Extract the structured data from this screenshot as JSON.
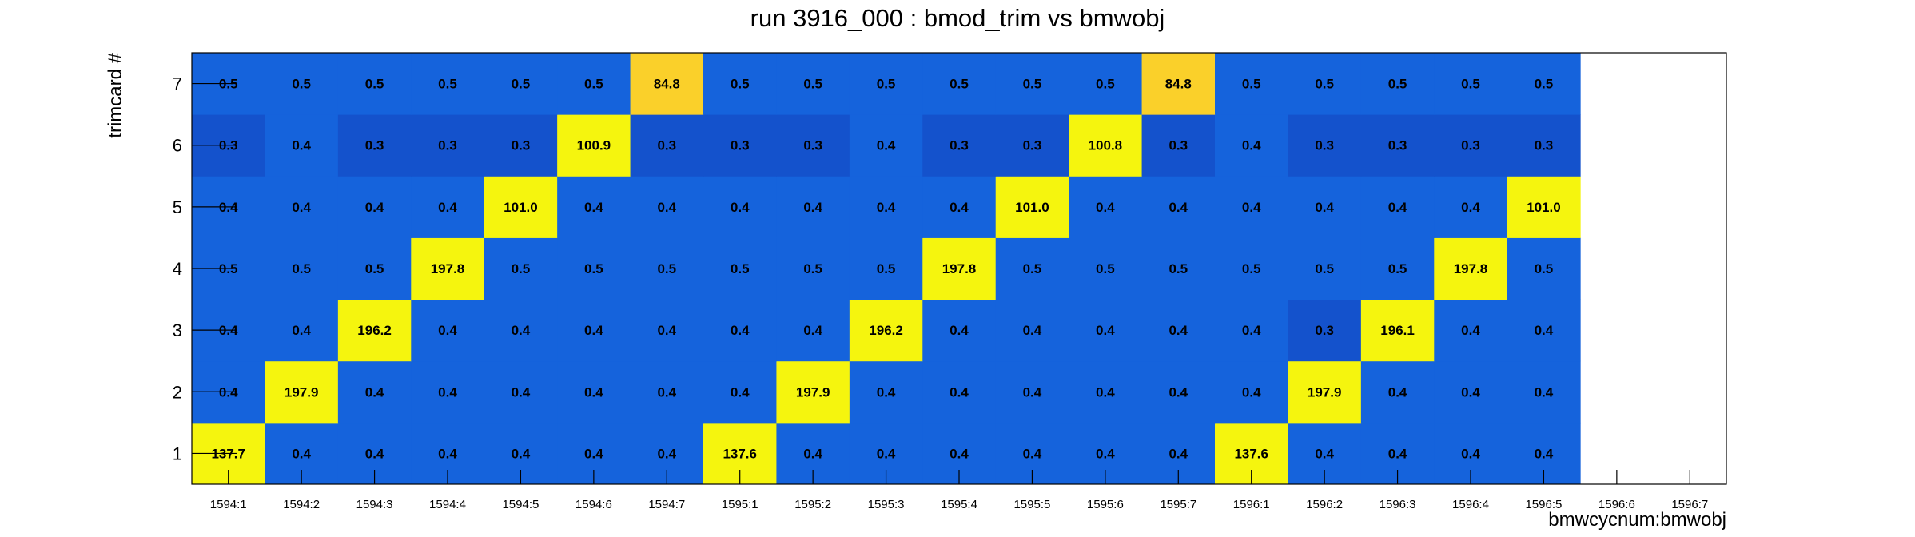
{
  "chart_data": {
    "type": "heatmap",
    "title": "run 3916_000 : bmod_trim vs bmwobj",
    "xlabel": "bmwcycnum:bmwobj",
    "ylabel": "trimcard #",
    "x_categories": [
      "1594:1",
      "1594:2",
      "1594:3",
      "1594:4",
      "1594:5",
      "1594:6",
      "1594:7",
      "1595:1",
      "1595:2",
      "1595:3",
      "1595:4",
      "1595:5",
      "1595:6",
      "1595:7",
      "1596:1",
      "1596:2",
      "1596:3",
      "1596:4",
      "1596:5",
      "1596:6",
      "1596:7"
    ],
    "y_categories": [
      "1",
      "2",
      "3",
      "4",
      "5",
      "6",
      "7"
    ],
    "values": [
      [
        137.7,
        0.4,
        0.4,
        0.4,
        0.4,
        0.4,
        0.4,
        137.6,
        0.4,
        0.4,
        0.4,
        0.4,
        0.4,
        0.4,
        137.6,
        0.4,
        0.4,
        0.4,
        0.4,
        null,
        null
      ],
      [
        0.4,
        197.9,
        0.4,
        0.4,
        0.4,
        0.4,
        0.4,
        0.4,
        197.9,
        0.4,
        0.4,
        0.4,
        0.4,
        0.4,
        0.4,
        197.9,
        0.4,
        0.4,
        0.4,
        null,
        null
      ],
      [
        0.4,
        0.4,
        196.2,
        0.4,
        0.4,
        0.4,
        0.4,
        0.4,
        0.4,
        196.2,
        0.4,
        0.4,
        0.4,
        0.4,
        0.4,
        0.3,
        196.1,
        0.4,
        0.4,
        null,
        null
      ],
      [
        0.5,
        0.5,
        0.5,
        197.8,
        0.5,
        0.5,
        0.5,
        0.5,
        0.5,
        0.5,
        197.8,
        0.5,
        0.5,
        0.5,
        0.5,
        0.5,
        0.5,
        197.8,
        0.5,
        null,
        null
      ],
      [
        0.4,
        0.4,
        0.4,
        0.4,
        101.0,
        0.4,
        0.4,
        0.4,
        0.4,
        0.4,
        0.4,
        101.0,
        0.4,
        0.4,
        0.4,
        0.4,
        0.4,
        0.4,
        101.0,
        null,
        null
      ],
      [
        0.3,
        0.4,
        0.3,
        0.3,
        0.3,
        100.9,
        0.3,
        0.3,
        0.3,
        0.4,
        0.3,
        0.3,
        100.8,
        0.3,
        0.4,
        0.3,
        0.3,
        0.3,
        0.3,
        null,
        null
      ],
      [
        0.5,
        0.5,
        0.5,
        0.5,
        0.5,
        0.5,
        84.8,
        0.5,
        0.5,
        0.5,
        0.5,
        0.5,
        0.5,
        84.8,
        0.5,
        0.5,
        0.5,
        0.5,
        0.5,
        null,
        null
      ]
    ],
    "colors": {
      "high": "#f5f50e",
      "mid": "#fad02a",
      "low": "#1563dc",
      "lower": "#1452cc"
    }
  }
}
